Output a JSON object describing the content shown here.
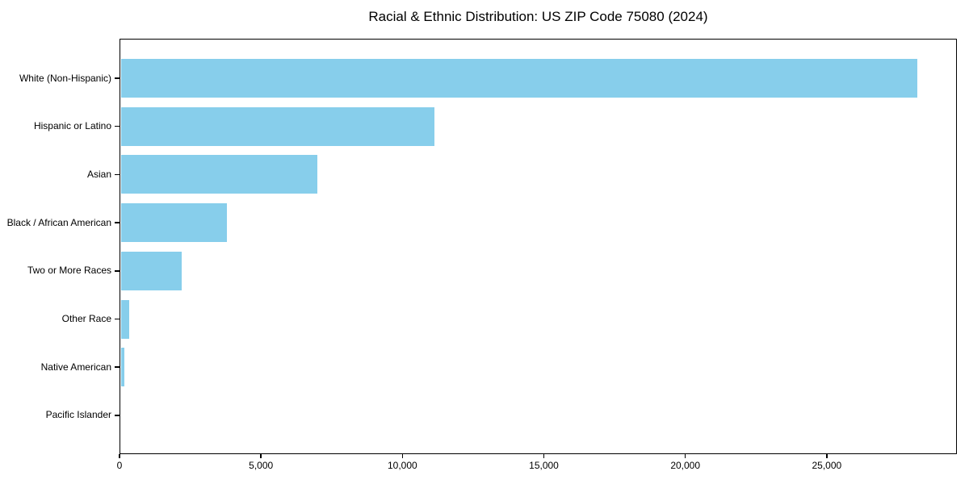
{
  "page": {
    "background_color": "#ffffff",
    "text_color": "#000000"
  },
  "chart_data": {
    "type": "bar",
    "orientation": "horizontal",
    "title": "Racial & Ethnic Distribution: US ZIP Code 75080 (2024)",
    "xlabel": "",
    "ylabel": "",
    "categories": [
      "White (Non-Hispanic)",
      "Hispanic or Latino",
      "Asian",
      "Black / African American",
      "Two or More Races",
      "Other Race",
      "Native American",
      "Pacific Islander"
    ],
    "values": [
      28200,
      11100,
      6950,
      3770,
      2170,
      290,
      115,
      0
    ],
    "xlim": [
      0,
      29600
    ],
    "x_ticks": [
      {
        "value": 0,
        "label": "0"
      },
      {
        "value": 5000,
        "label": "5,000"
      },
      {
        "value": 10000,
        "label": "10,000"
      },
      {
        "value": 15000,
        "label": "15,000"
      },
      {
        "value": 20000,
        "label": "20,000"
      },
      {
        "value": 25000,
        "label": "25,000"
      }
    ],
    "bar_color": "#87ceeb",
    "frame_color": "#000000",
    "grid": false,
    "legend": null
  }
}
